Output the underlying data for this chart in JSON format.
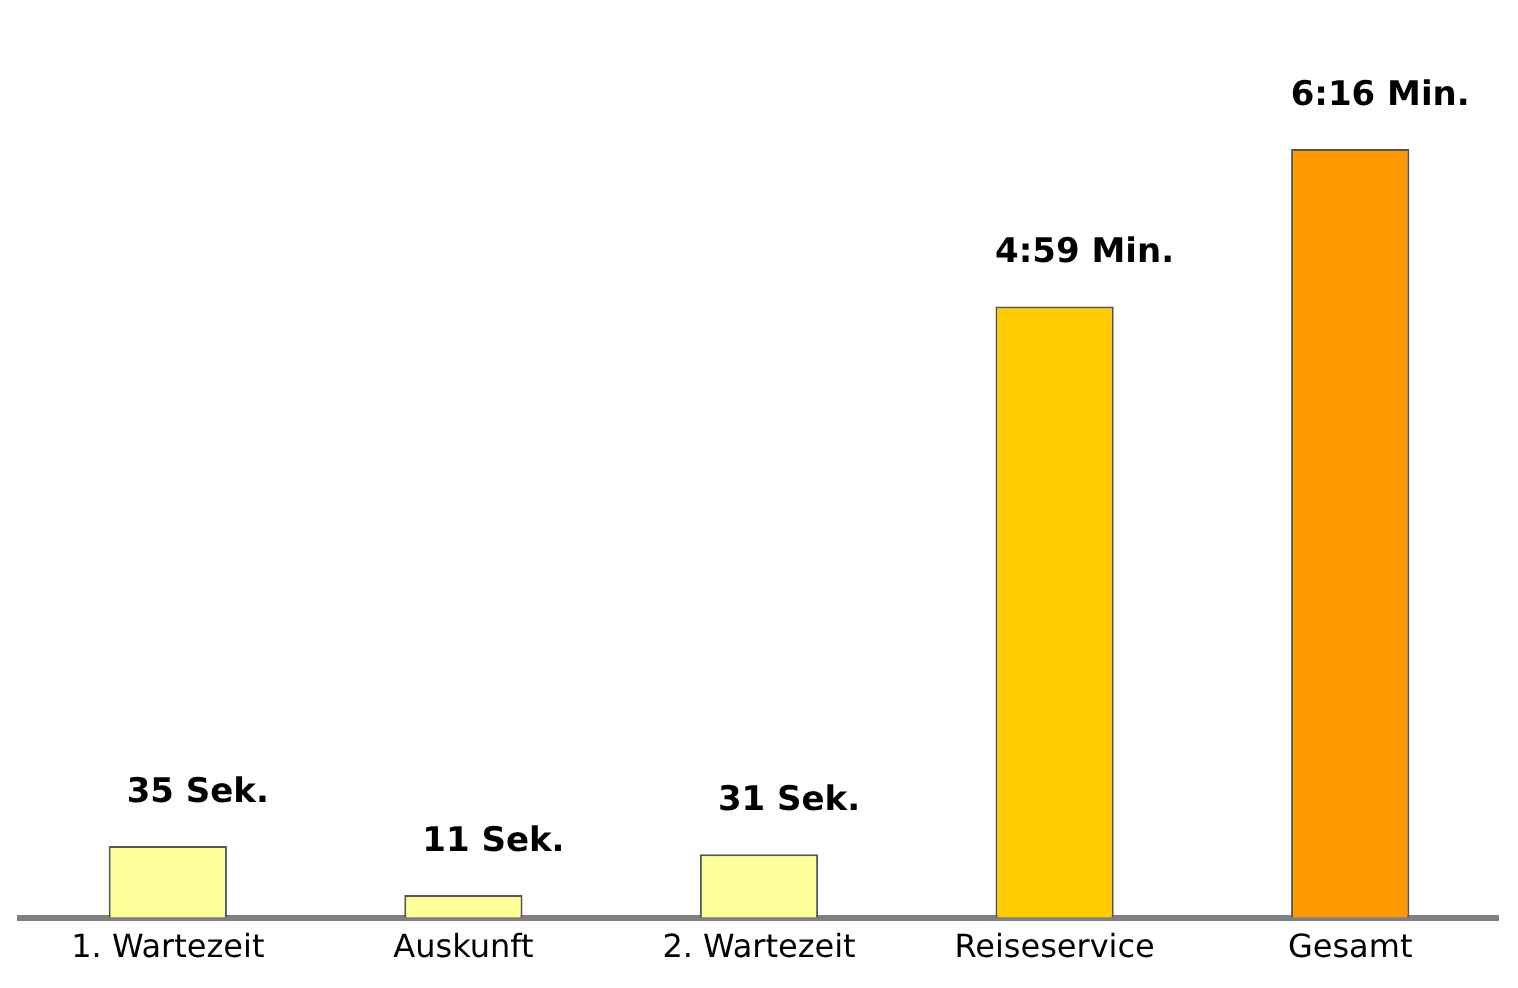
{
  "chart_data": {
    "type": "bar",
    "categories": [
      "1. Wartezeit",
      "Auskunft",
      "2. Wartezeit",
      "Reiseservice",
      "Gesamt"
    ],
    "values": [
      35,
      11,
      31,
      299,
      376
    ],
    "colors": [
      "#ffff99",
      "#ffff99",
      "#ffff99",
      "#ffcc00",
      "#ff9900"
    ],
    "value_labels": [
      "35 Sek.",
      "11 Sek.",
      "31 Sek.",
      "4:59 Min.",
      "6:16 Min."
    ],
    "grid": false,
    "legend": false
  }
}
